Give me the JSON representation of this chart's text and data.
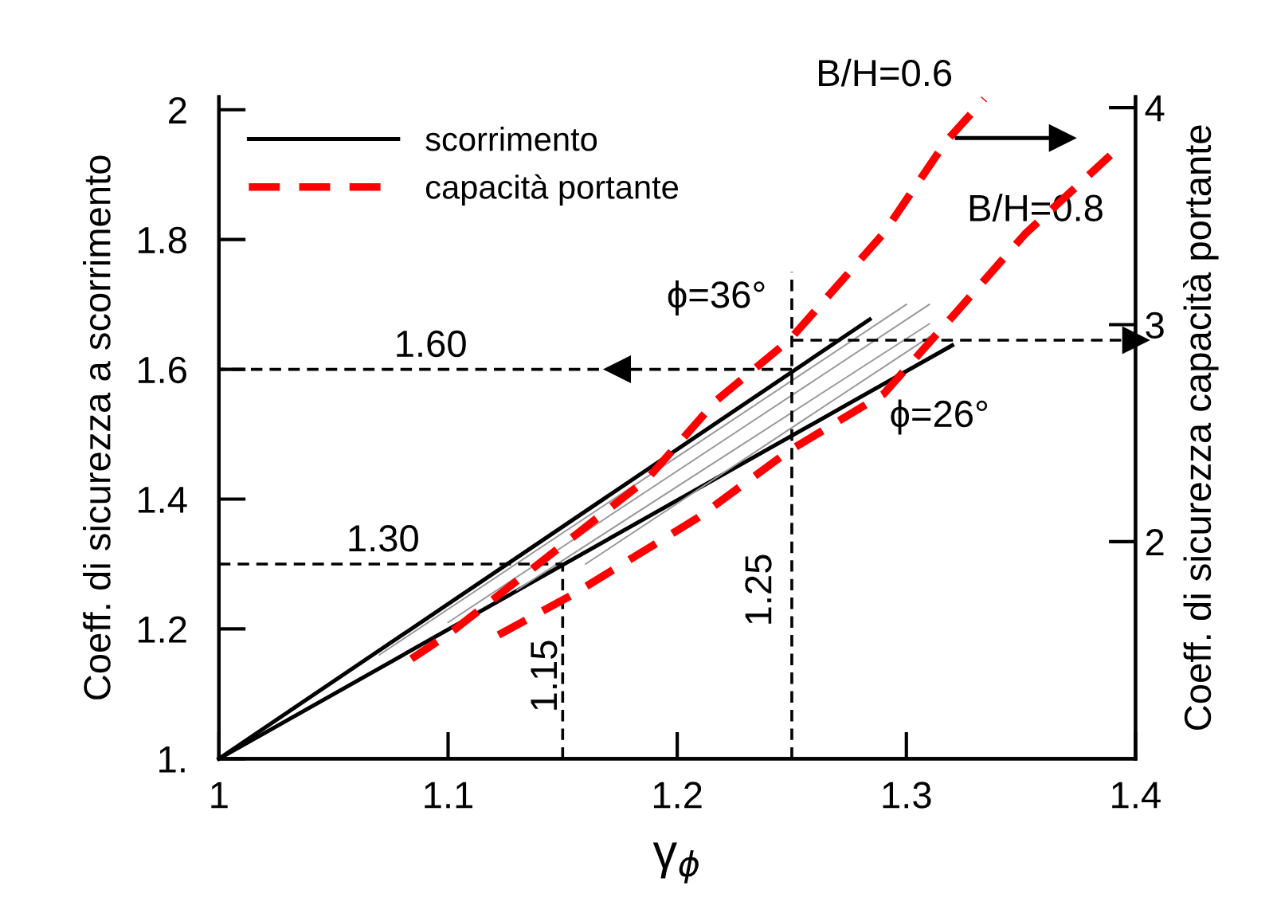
{
  "chart_data": {
    "type": "line",
    "xlabel": "γ$_{ϕ}$",
    "ylabel": "Coeff. di sicurezza a scorrimento",
    "y2label": "Coeff. di sicurezza capacità portante",
    "xlim": [
      1.0,
      1.4
    ],
    "xticks": [
      1,
      1.1,
      1.2,
      1.3,
      1.4
    ],
    "ylim": [
      1.0,
      2.02
    ],
    "yticks": [
      {
        "value": 1,
        "label": "1."
      },
      1.2,
      1.4,
      1.6,
      1.8,
      2
    ],
    "y2lim": [
      1.0,
      4.05
    ],
    "y2ticks": [
      2,
      3,
      4
    ],
    "grid": false,
    "legend": "top left",
    "series": [
      {
        "name": "scorrimento",
        "color": "#000000",
        "line_style": "solid",
        "x": [
          1.0,
          1.284
        ],
        "values": [
          1.0,
          1.677
        ]
      },
      {
        "color": "#000000",
        "line_style": "solid",
        "x": [
          1.0,
          1.32
        ],
        "values": [
          1.0,
          1.637
        ]
      },
      {
        "color": "#999999",
        "line_style": "solid",
        "x": [
          1.07,
          1.3
        ],
        "values": [
          1.16,
          1.7
        ]
      },
      {
        "color": "#999999",
        "line_style": "solid",
        "x": [
          1.1,
          1.31
        ],
        "values": [
          1.21,
          1.7
        ]
      },
      {
        "color": "#999999",
        "line_style": "solid",
        "x": [
          1.13,
          1.31
        ],
        "values": [
          1.26,
          1.67
        ]
      },
      {
        "color": "#999999",
        "line_style": "solid",
        "x": [
          1.16,
          1.31
        ],
        "values": [
          1.3,
          1.65
        ]
      },
      {
        "name": "capacità portante",
        "color": "#ff0000",
        "line_style": "dashed",
        "axis": "y2",
        "x": [
          1.084,
          1.101,
          1.187,
          1.217,
          1.249,
          1.29,
          1.317,
          1.334
        ],
        "values": [
          1.46,
          1.58,
          2.29,
          2.65,
          2.93,
          3.42,
          3.84,
          4.04
        ]
      },
      {
        "color": "#ff0000",
        "line_style": "dashed",
        "axis": "y2",
        "x": [
          1.122,
          1.155,
          1.209,
          1.249,
          1.29,
          1.322,
          1.352,
          1.389
        ],
        "values": [
          1.57,
          1.76,
          2.11,
          2.42,
          2.68,
          3.06,
          3.42,
          3.78
        ]
      },
      {
        "color": "#000000",
        "line_style": "dashed",
        "marker": "triangle",
        "x": [
          1.25,
          1.174
        ],
        "values": [
          1.6,
          1.6
        ]
      },
      {
        "color": "#000000",
        "line_style": "dashed",
        "x": [
          1.174,
          1.0
        ],
        "values": [
          1.6,
          1.6
        ]
      },
      {
        "color": "#000000",
        "line_style": "dashed",
        "marker": "triangle",
        "x": [
          1.25,
          1.4
        ],
        "values": [
          1.645,
          1.645
        ]
      },
      {
        "color": "#000000",
        "line_style": "dashed",
        "x": [
          1.25,
          1.25
        ],
        "values": [
          1.0,
          1.75
        ]
      },
      {
        "color": "#000000",
        "line_style": "dashed",
        "x": [
          1.0,
          1.15
        ],
        "values": [
          1.3,
          1.3
        ]
      },
      {
        "color": "#000000",
        "line_style": "dashed",
        "x": [
          1.15,
          1.15
        ],
        "values": [
          1.0,
          1.3
        ]
      },
      {
        "color": "#000000",
        "line_style": "solid",
        "marker": "triangle",
        "axis": "y2",
        "x": [
          1.322,
          1.368
        ],
        "values": [
          3.86,
          3.86
        ]
      }
    ],
    "annotations": [
      "1.60",
      "1.30",
      "1.15",
      "1.25",
      "ϕ=36°",
      "ϕ=26°",
      "B/H=0.6",
      "B/H=0.8"
    ]
  }
}
